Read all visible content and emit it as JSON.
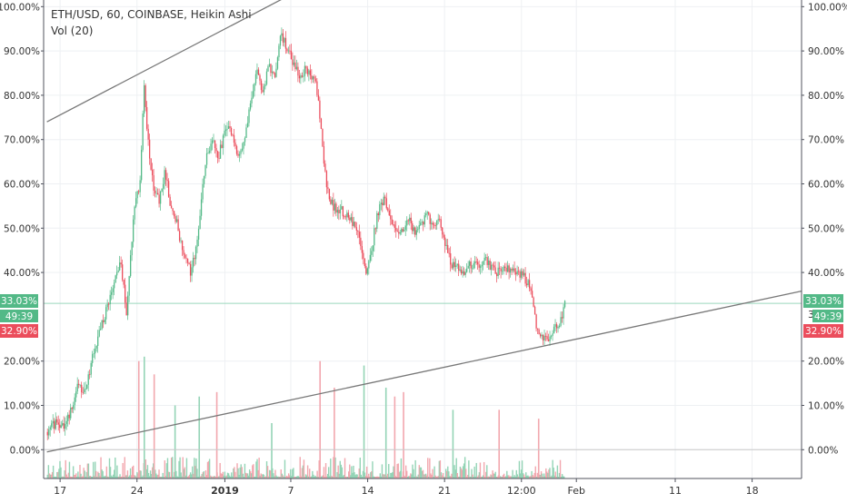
{
  "header": {
    "symbol_line": "ETH/USD, 60, COINBASE, Heikin Ashi",
    "volume_line": "Vol (20)"
  },
  "colors": {
    "up": "#53b987",
    "down": "#eb4d5c",
    "vol_up": "#94d4b6",
    "vol_down": "#f2a7ae",
    "grid": "#eef0f3",
    "axis": "#50535e",
    "trendline": "#787878"
  },
  "price_badges": {
    "left": {
      "top": "33.03%",
      "middle": "49:39",
      "bottom": "32.90%"
    },
    "right": {
      "top": "33.03%",
      "middle": "49:39",
      "bottom": "32.90%"
    },
    "hidden_digit_left": "3",
    "hidden_digit_right": "3"
  },
  "chart_data": {
    "type": "candlestick",
    "title": "ETH/USD, 60, COINBASE, Heikin Ashi",
    "y_axis": {
      "ticks": [
        "100.00%",
        "90.00%",
        "80.00%",
        "70.00%",
        "60.00%",
        "50.00%",
        "40.00%",
        "20.00%",
        "10.00%",
        "0.00%"
      ],
      "tick_values": [
        100,
        90,
        80,
        70,
        60,
        50,
        40,
        20,
        10,
        0
      ],
      "range": [
        -6.5,
        101.5
      ]
    },
    "x_axis": {
      "ticks": [
        "17",
        "24",
        "2019",
        "7",
        "14",
        "21",
        "12:00",
        "Feb",
        "11",
        "18"
      ],
      "tick_days": [
        17,
        24,
        32,
        38,
        45,
        52,
        59,
        64,
        73,
        80
      ],
      "range_days": [
        15.5,
        84.5
      ]
    },
    "price_path": [
      [
        15.8,
        4
      ],
      [
        16.5,
        6
      ],
      [
        17.2,
        5
      ],
      [
        17.8,
        8
      ],
      [
        18.5,
        14
      ],
      [
        19.2,
        13
      ],
      [
        20.0,
        22
      ],
      [
        20.6,
        27
      ],
      [
        21.2,
        32
      ],
      [
        21.8,
        37
      ],
      [
        22.4,
        43
      ],
      [
        23.0,
        31
      ],
      [
        23.7,
        55
      ],
      [
        24.2,
        60
      ],
      [
        24.6,
        82
      ],
      [
        25.0,
        68
      ],
      [
        25.5,
        58
      ],
      [
        26.0,
        56
      ],
      [
        26.5,
        63
      ],
      [
        27.0,
        55
      ],
      [
        27.5,
        52
      ],
      [
        28.0,
        46
      ],
      [
        28.8,
        40
      ],
      [
        29.3,
        45
      ],
      [
        29.8,
        56
      ],
      [
        30.3,
        67
      ],
      [
        30.8,
        70
      ],
      [
        31.3,
        65
      ],
      [
        32.0,
        73
      ],
      [
        32.6,
        72
      ],
      [
        33.2,
        66
      ],
      [
        33.8,
        71
      ],
      [
        34.3,
        79
      ],
      [
        34.9,
        86
      ],
      [
        35.4,
        80
      ],
      [
        35.9,
        87
      ],
      [
        36.5,
        84
      ],
      [
        37.0,
        94
      ],
      [
        37.6,
        91
      ],
      [
        38.2,
        87
      ],
      [
        38.8,
        84
      ],
      [
        39.3,
        86
      ],
      [
        39.8,
        84
      ],
      [
        40.3,
        82
      ],
      [
        40.8,
        70
      ],
      [
        41.2,
        59
      ],
      [
        41.8,
        55
      ],
      [
        42.5,
        54
      ],
      [
        43.1,
        53
      ],
      [
        43.7,
        51
      ],
      [
        44.3,
        47
      ],
      [
        44.8,
        40
      ],
      [
        45.3,
        45
      ],
      [
        45.8,
        53
      ],
      [
        46.4,
        57
      ],
      [
        47.0,
        52
      ],
      [
        47.5,
        49
      ],
      [
        48.1,
        50
      ],
      [
        48.7,
        52
      ],
      [
        49.3,
        49
      ],
      [
        49.8,
        51
      ],
      [
        50.3,
        53
      ],
      [
        50.9,
        51
      ],
      [
        51.5,
        52
      ],
      [
        52.0,
        46
      ],
      [
        52.6,
        42
      ],
      [
        53.2,
        41
      ],
      [
        53.8,
        40
      ],
      [
        54.4,
        42
      ],
      [
        55.0,
        42
      ],
      [
        55.6,
        43
      ],
      [
        56.2,
        41
      ],
      [
        56.8,
        40
      ],
      [
        57.4,
        41
      ],
      [
        58.0,
        41
      ],
      [
        58.6,
        40
      ],
      [
        59.2,
        39
      ],
      [
        59.8,
        36
      ],
      [
        60.3,
        28
      ],
      [
        60.8,
        25
      ],
      [
        61.3,
        25
      ],
      [
        61.9,
        27
      ],
      [
        62.4,
        28
      ],
      [
        62.9,
        33
      ]
    ],
    "trendlines": [
      {
        "name": "upper",
        "from": [
          15.8,
          74.0
        ],
        "to": [
          49.8,
          118.0
        ]
      },
      {
        "name": "lower",
        "from": [
          15.8,
          -0.5
        ],
        "to": [
          84.5,
          35.8
        ]
      }
    ],
    "horizontal_lines": [
      {
        "name": "current-price",
        "value": 33.03
      },
      {
        "name": "baseline",
        "value": 0
      }
    ],
    "volume": {
      "label": "Vol (20)",
      "spikes": [
        [
          24.1,
          20
        ],
        [
          24.6,
          21
        ],
        [
          25.5,
          17
        ],
        [
          27.4,
          10
        ],
        [
          31.2,
          13
        ],
        [
          29.6,
          12
        ],
        [
          36.2,
          6
        ],
        [
          40.6,
          20
        ],
        [
          41.9,
          14
        ],
        [
          44.6,
          19
        ],
        [
          46.6,
          14
        ],
        [
          47.4,
          12
        ],
        [
          48.2,
          13
        ],
        [
          52.7,
          9
        ],
        [
          56.9,
          9
        ],
        [
          60.5,
          7
        ]
      ]
    }
  }
}
